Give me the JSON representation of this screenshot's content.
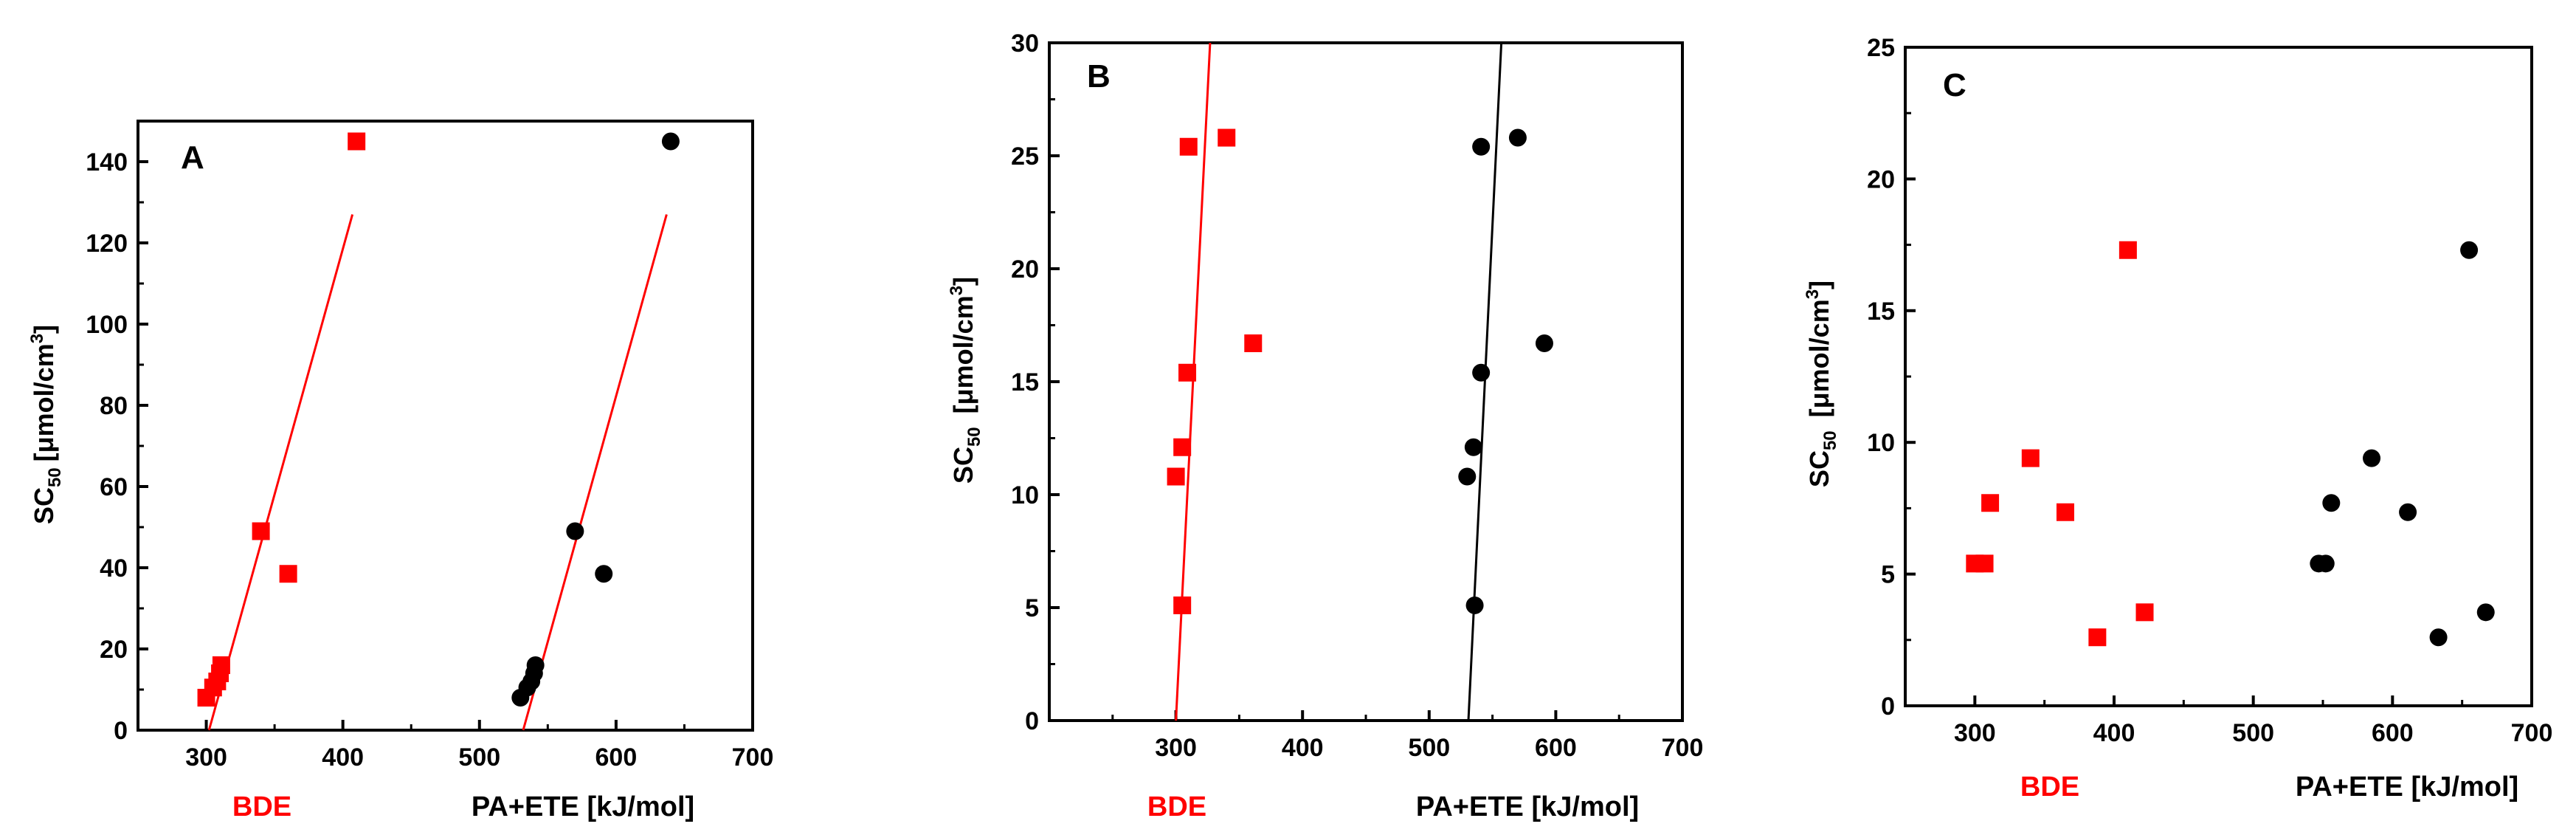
{
  "colors": {
    "bde": "#ff0000",
    "pa_ete": "#000000",
    "axis": "#000000"
  },
  "chart_data": [
    {
      "type": "scatter",
      "panel_label": "A",
      "title": "",
      "xlabel_bde": "BDE",
      "xlabel_pa": "PA+ETE [kJ/mol]",
      "ylabel": {
        "main": "SC",
        "sub": "50",
        "unit": "[μmol/cm",
        "sup": "3",
        "close": "]"
      },
      "xlim": [
        250,
        700
      ],
      "ylim": [
        0,
        150
      ],
      "xticks": [
        300,
        400,
        500,
        600,
        700
      ],
      "yticks": [
        0,
        20,
        40,
        60,
        80,
        100,
        120,
        140
      ],
      "series": [
        {
          "name": "BDE",
          "marker": "square",
          "color": "#ff0000",
          "points": [
            [
              300,
              8
            ],
            [
              305,
              10.5
            ],
            [
              308,
              12
            ],
            [
              310,
              14
            ],
            [
              311,
              16
            ],
            [
              340,
              49
            ],
            [
              360,
              38.5
            ],
            [
              410,
              145
            ]
          ]
        },
        {
          "name": "PA+ETE",
          "marker": "circle",
          "color": "#000000",
          "points": [
            [
              530,
              8
            ],
            [
              535,
              10.5
            ],
            [
              538,
              12
            ],
            [
              540,
              14
            ],
            [
              541,
              16
            ],
            [
              570,
              49
            ],
            [
              591,
              38.5
            ],
            [
              640,
              145
            ]
          ]
        }
      ],
      "fit_lines": [
        {
          "series": "BDE",
          "color": "#ff0000",
          "from": [
            302,
            0
          ],
          "to": [
            407,
            127
          ]
        },
        {
          "series": "PA+ETE",
          "color": "#ff0000",
          "from": [
            532,
            0
          ],
          "to": [
            637,
            127
          ]
        }
      ]
    },
    {
      "type": "scatter",
      "panel_label": "B",
      "title": "",
      "xlabel_bde": "BDE",
      "xlabel_pa": "PA+ETE [kJ/mol]",
      "ylabel": {
        "main": "SC",
        "sub": "50",
        "unit": " [μmol/cm",
        "sup": "3",
        "close": "]"
      },
      "xlim": [
        200,
        700
      ],
      "ylim": [
        0,
        30
      ],
      "xticks": [
        300,
        400,
        500,
        600,
        700
      ],
      "yticks": [
        0,
        5,
        10,
        15,
        20,
        25,
        30
      ],
      "series": [
        {
          "name": "BDE",
          "marker": "square",
          "color": "#ff0000",
          "points": [
            [
              300,
              10.8
            ],
            [
              305,
              12.1
            ],
            [
              305,
              5.1
            ],
            [
              309,
              15.4
            ],
            [
              310,
              25.4
            ],
            [
              340,
              25.8
            ],
            [
              361,
              16.7
            ]
          ]
        },
        {
          "name": "PA+ETE",
          "marker": "circle",
          "color": "#000000",
          "points": [
            [
              530,
              10.8
            ],
            [
              535,
              12.1
            ],
            [
              536,
              5.1
            ],
            [
              541,
              15.4
            ],
            [
              541,
              25.4
            ],
            [
              570,
              25.8
            ],
            [
              591,
              16.7
            ]
          ]
        }
      ],
      "fit_lines": [
        {
          "series": "BDE",
          "color": "#ff0000",
          "from": [
            300,
            0
          ],
          "to": [
            327,
            30
          ]
        },
        {
          "series": "PA+ETE",
          "color": "#000000",
          "from": [
            531,
            0
          ],
          "to": [
            557,
            30
          ]
        }
      ]
    },
    {
      "type": "scatter",
      "panel_label": "C",
      "title": "",
      "xlabel_bde": "BDE",
      "xlabel_pa": "PA+ETE [kJ/mol]",
      "ylabel": {
        "main": "SC",
        "sub": "50",
        "unit": " [μmol/cm",
        "sup": "3",
        "close": "]"
      },
      "xlim": [
        250,
        700
      ],
      "ylim": [
        0,
        25
      ],
      "xticks": [
        300,
        400,
        500,
        600,
        700
      ],
      "yticks": [
        0,
        5,
        10,
        15,
        20,
        25
      ],
      "series": [
        {
          "name": "BDE",
          "marker": "square",
          "color": "#ff0000",
          "points": [
            [
              300,
              5.4
            ],
            [
              307,
              5.4
            ],
            [
              311,
              7.7
            ],
            [
              340,
              9.4
            ],
            [
              365,
              7.35
            ],
            [
              388,
              2.6
            ],
            [
              410,
              17.3
            ],
            [
              422,
              3.55
            ]
          ]
        },
        {
          "name": "PA+ETE",
          "marker": "circle",
          "color": "#000000",
          "points": [
            [
              547,
              5.4
            ],
            [
              552,
              5.4
            ],
            [
              556,
              7.7
            ],
            [
              585,
              9.4
            ],
            [
              611,
              7.35
            ],
            [
              633,
              2.6
            ],
            [
              655,
              17.3
            ],
            [
              667,
              3.55
            ]
          ]
        }
      ],
      "fit_lines": []
    }
  ]
}
